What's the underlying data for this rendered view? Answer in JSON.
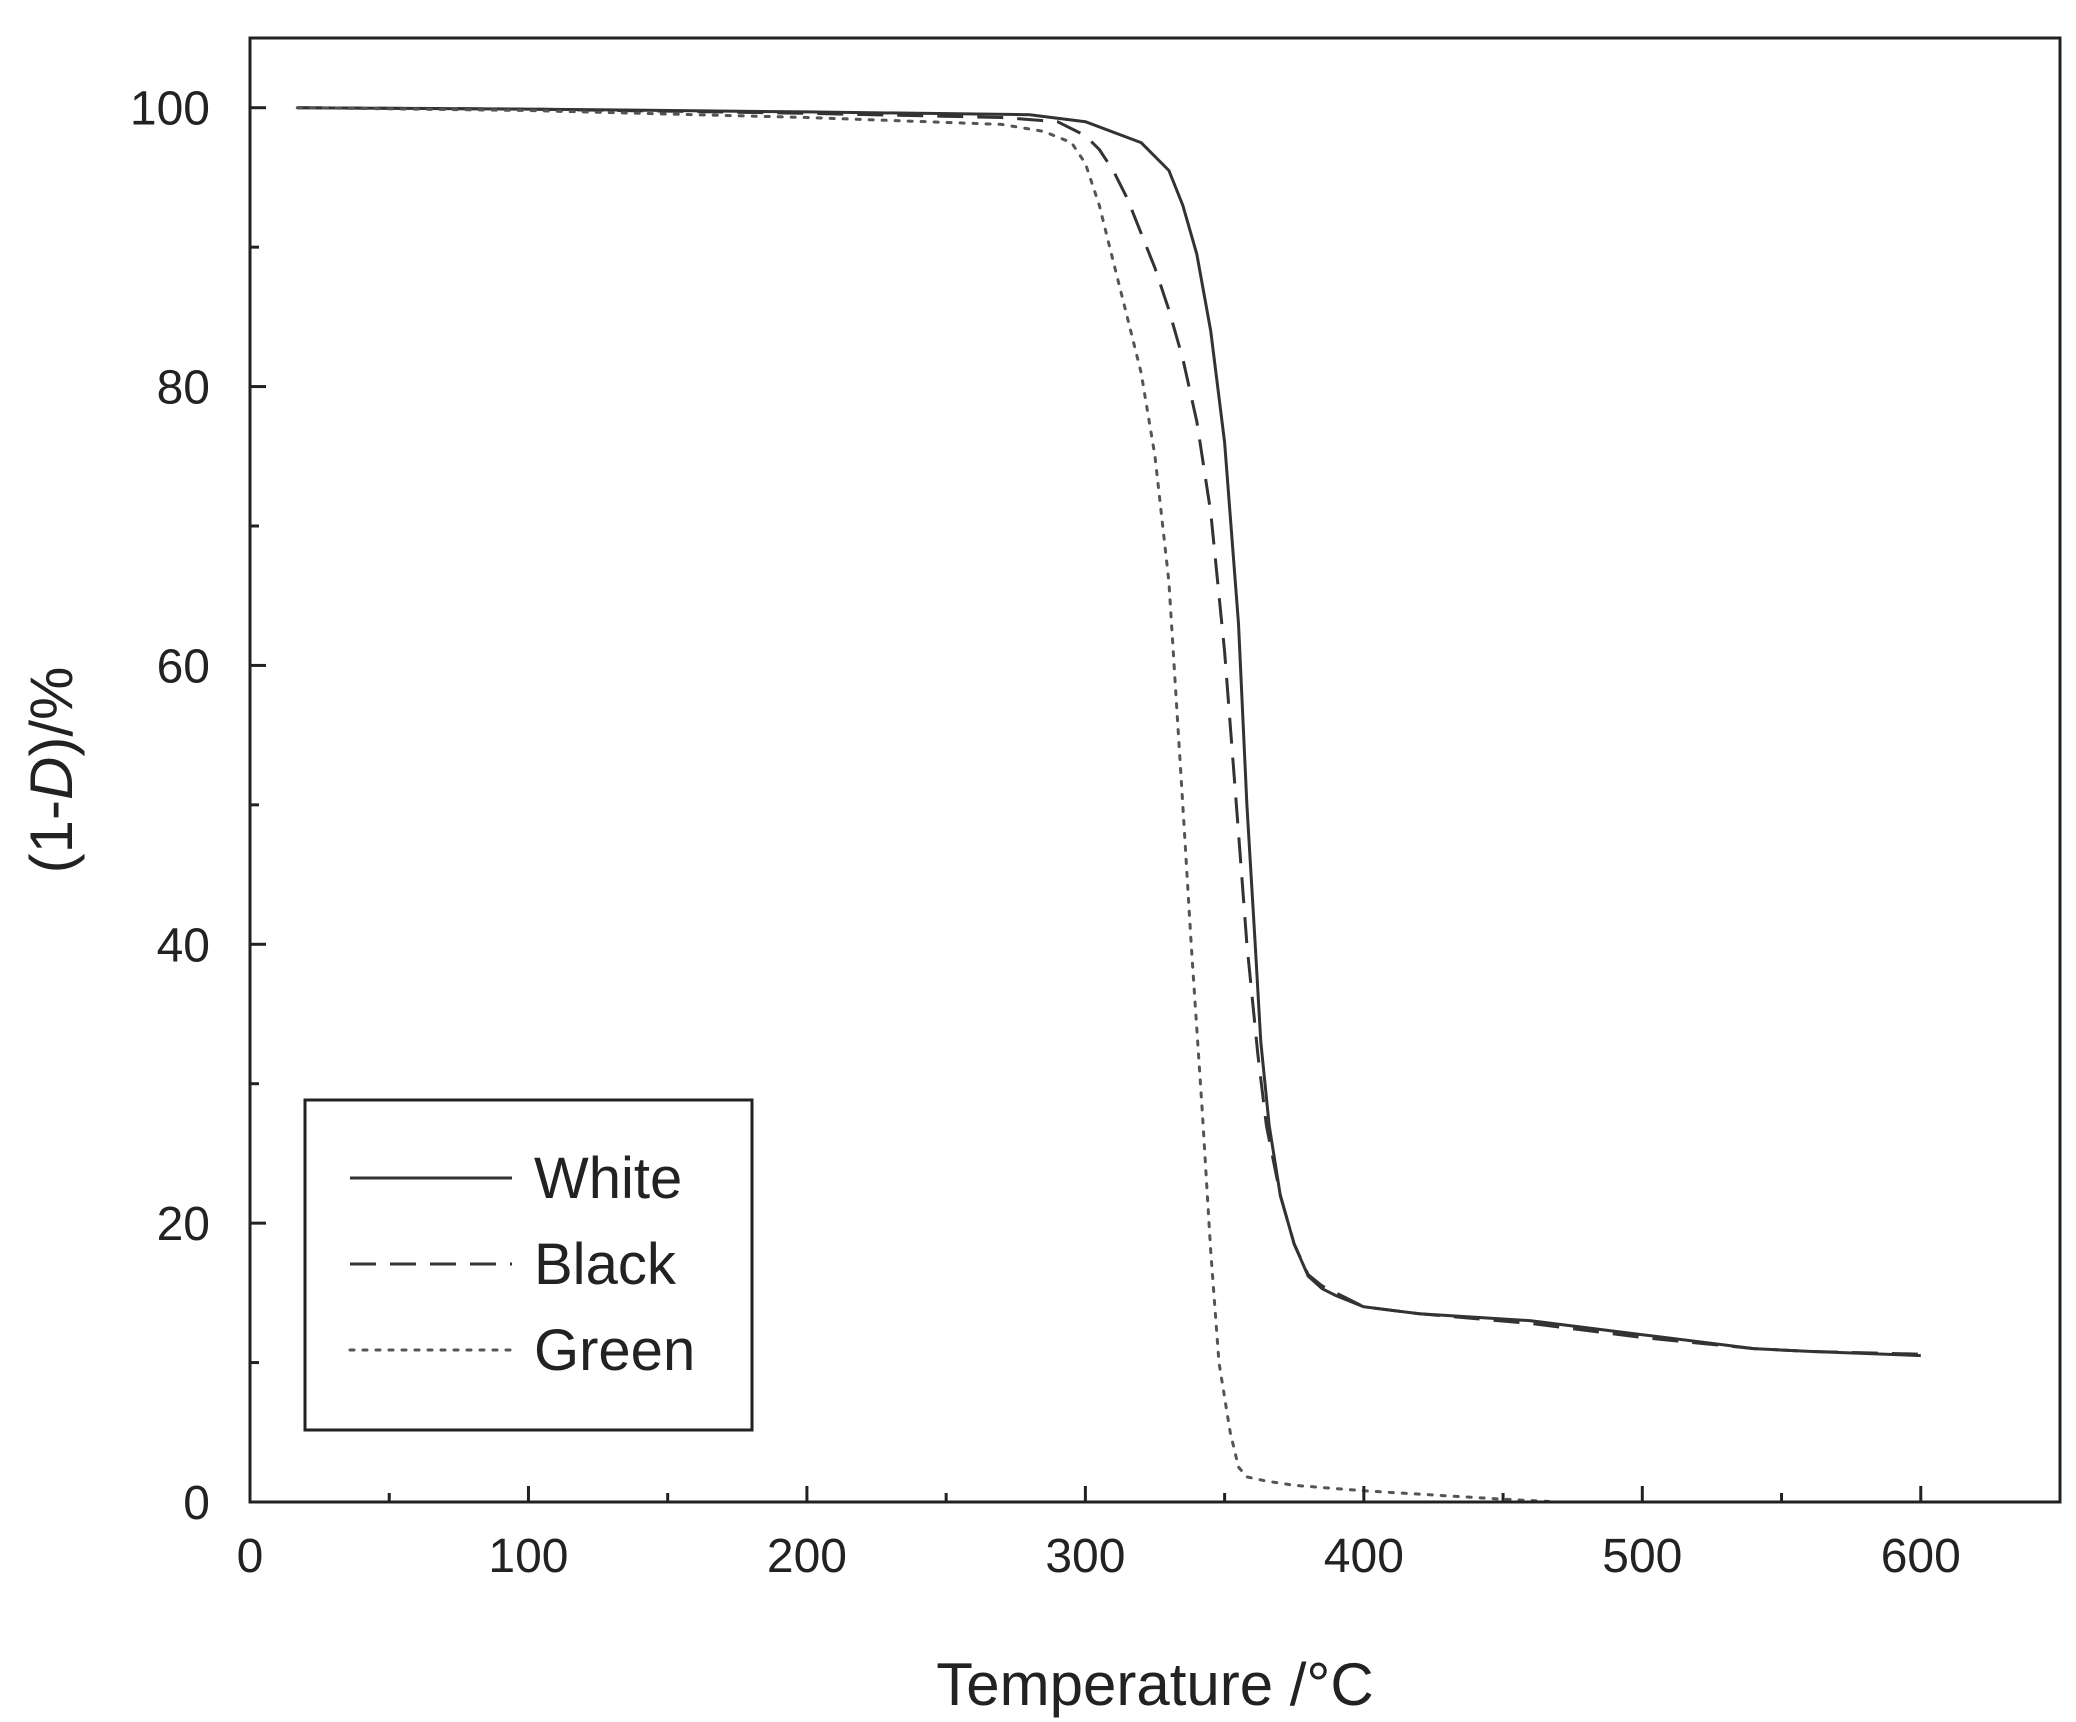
{
  "chart_data": {
    "type": "line",
    "title": "",
    "xlabel": "Temperature /°C",
    "ylabel": {
      "before": "(1-",
      "italic": "D",
      "after": ")/%"
    },
    "xlim": [
      0,
      650
    ],
    "ylim": [
      0,
      105
    ],
    "x_ticks": [
      0,
      100,
      200,
      300,
      400,
      500,
      600
    ],
    "x_minor_ticks": [
      50,
      150,
      250,
      350,
      450,
      550,
      650
    ],
    "y_ticks": [
      0,
      20,
      40,
      60,
      80,
      100
    ],
    "y_minor_ticks": [
      10,
      30,
      50,
      70,
      90
    ],
    "grid": false,
    "legend_position": "bottom-left",
    "series": [
      {
        "name": "White",
        "style": "solid",
        "color": "#333333",
        "x": [
          17,
          100,
          200,
          280,
          300,
          320,
          330,
          335,
          340,
          345,
          350,
          355,
          358,
          361,
          363,
          366,
          370,
          375,
          380,
          385,
          390,
          400,
          420,
          460,
          500,
          540,
          560,
          600
        ],
        "y": [
          100,
          99.9,
          99.7,
          99.5,
          99.0,
          97.5,
          95.5,
          93.0,
          89.5,
          84.0,
          76.0,
          63.0,
          50.0,
          40.0,
          33.0,
          27.0,
          22.0,
          18.5,
          16.2,
          15.3,
          14.8,
          14.0,
          13.5,
          13.0,
          12.0,
          11.0,
          10.8,
          10.5
        ]
      },
      {
        "name": "Black",
        "style": "dashed",
        "color": "#333333",
        "x": [
          17,
          100,
          200,
          270,
          290,
          300,
          305,
          310,
          315,
          320,
          325,
          330,
          335,
          340,
          345,
          350,
          355,
          358,
          362,
          365,
          370,
          375,
          380,
          385,
          390,
          400,
          420,
          460,
          500,
          540,
          560,
          600
        ],
        "y": [
          100,
          99.9,
          99.6,
          99.3,
          99.0,
          98.0,
          97.0,
          95.5,
          93.5,
          91.0,
          88.5,
          85.5,
          82.0,
          77.5,
          71.0,
          61.0,
          48.0,
          40.0,
          32.0,
          27.0,
          22.0,
          18.5,
          16.3,
          15.5,
          15.0,
          14.0,
          13.5,
          12.8,
          11.8,
          11.0,
          10.8,
          10.6
        ]
      },
      {
        "name": "Green",
        "style": "dotted",
        "color": "#555555",
        "x": [
          17,
          100,
          200,
          270,
          285,
          295,
          300,
          305,
          310,
          315,
          320,
          325,
          330,
          335,
          338,
          342,
          345,
          348,
          352,
          355,
          358,
          365,
          375,
          400,
          450,
          470
        ],
        "y": [
          100,
          99.8,
          99.3,
          98.8,
          98.3,
          97.5,
          96.0,
          93.0,
          89.0,
          85.0,
          81.0,
          75.0,
          66.0,
          50.0,
          40.0,
          28.0,
          18.0,
          10.0,
          5.0,
          2.5,
          1.8,
          1.5,
          1.2,
          0.8,
          0.2,
          0.0
        ]
      }
    ]
  }
}
